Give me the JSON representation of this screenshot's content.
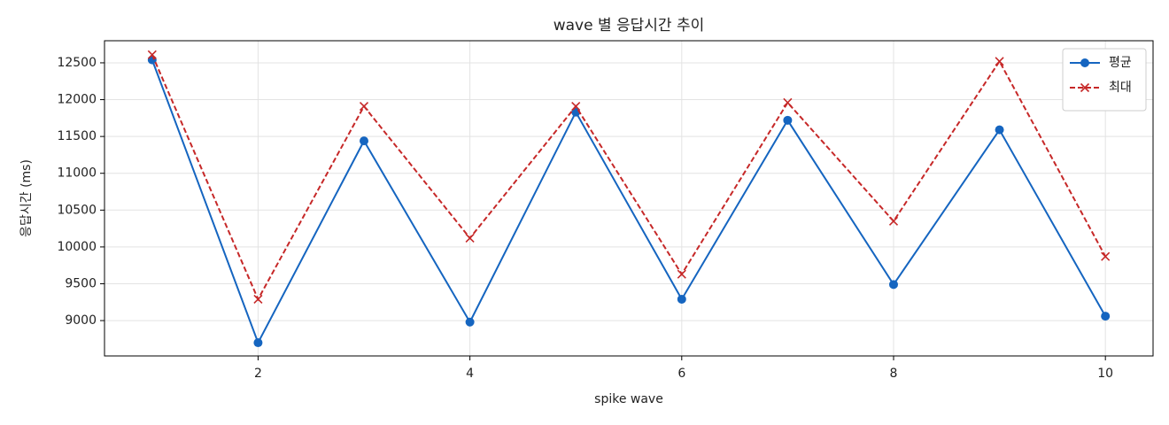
{
  "chart_data": {
    "type": "line",
    "title": "wave 별 응답시간 추이",
    "xlabel": "spike wave",
    "ylabel": "응답시간 (ms)",
    "x": [
      1,
      2,
      3,
      4,
      5,
      6,
      7,
      8,
      9,
      10
    ],
    "series": [
      {
        "name": "평균",
        "color": "#1565c0",
        "linestyle": "solid",
        "marker": "circle",
        "values": [
          12540,
          8700,
          11440,
          8980,
          11830,
          9290,
          11720,
          9490,
          11590,
          9060
        ]
      },
      {
        "name": "최대",
        "color": "#c62828",
        "linestyle": "dashed",
        "marker": "x",
        "values": [
          12610,
          9290,
          11910,
          10120,
          11910,
          9630,
          11960,
          10350,
          12520,
          9870
        ]
      }
    ],
    "xlim": [
      0.55,
      10.45
    ],
    "xticks": [
      2,
      4,
      6,
      8,
      10
    ],
    "ylim": [
      8520,
      12800
    ],
    "yticks": [
      9000,
      9500,
      10000,
      10500,
      11000,
      11500,
      12000,
      12500
    ],
    "grid": true,
    "legend": "upper right"
  }
}
